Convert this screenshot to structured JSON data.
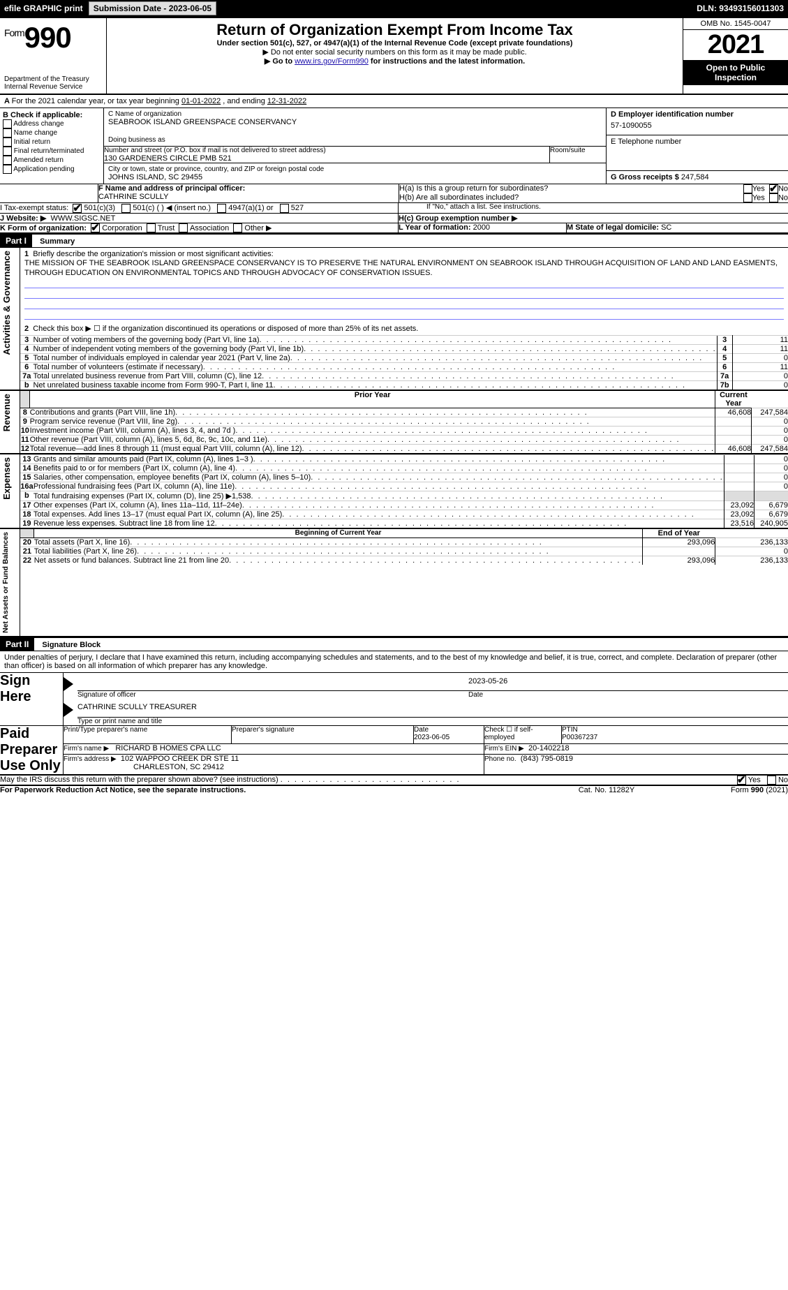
{
  "topbar": {
    "efile": "efile GRAPHIC print",
    "submission_label": "Submission Date - 2023-06-05",
    "dln": "DLN: 93493156011303"
  },
  "header": {
    "form_label": "Form",
    "form_num": "990",
    "title": "Return of Organization Exempt From Income Tax",
    "sub": "Under section 501(c), 527, or 4947(a)(1) of the Internal Revenue Code (except private foundations)",
    "note1": "▶ Do not enter social security numbers on this form as it may be made public.",
    "note2_pre": "▶ Go to ",
    "note2_link": "www.irs.gov/Form990",
    "note2_post": " for instructions and the latest information.",
    "dept": "Department of the Treasury",
    "irs": "Internal Revenue Service",
    "omb": "OMB No. 1545-0047",
    "year": "2021",
    "inspection": "Open to Public Inspection"
  },
  "periodA": {
    "text_pre": "For the 2021 calendar year, or tax year beginning ",
    "begin": "01-01-2022",
    "mid": "   , and ending ",
    "end": "12-31-2022"
  },
  "boxB": {
    "label": "B Check if applicable:",
    "items": [
      "Address change",
      "Name change",
      "Initial return",
      "Final return/terminated",
      "Amended return",
      "Application pending"
    ]
  },
  "boxC": {
    "label": "C Name of organization",
    "name": "SEABROOK ISLAND GREENSPACE CONSERVANCY",
    "dba_label": "Doing business as",
    "street_label": "Number and street (or P.O. box if mail is not delivered to street address)",
    "room_label": "Room/suite",
    "street": "130 GARDENERS CIRCLE PMB 521",
    "city_label": "City or town, state or province, country, and ZIP or foreign postal code",
    "city": "JOHNS ISLAND, SC  29455"
  },
  "boxD": {
    "label": "D Employer identification number",
    "value": "57-1090055"
  },
  "boxE": {
    "label": "E Telephone number",
    "value": ""
  },
  "boxG": {
    "label": "G Gross receipts $",
    "value": "247,584"
  },
  "boxF": {
    "label": "F  Name and address of principal officer:",
    "name": "CATHRINE SCULLY"
  },
  "boxH": {
    "a_label": "H(a)  Is this a group return for subordinates?",
    "b_label": "H(b)  Are all subordinates included?",
    "b_note": "If \"No,\" attach a list. See instructions.",
    "c_label": "H(c)  Group exemption number ▶",
    "yes": "Yes",
    "no": "No"
  },
  "boxI": {
    "label": "I    Tax-exempt status:",
    "opts": [
      "501(c)(3)",
      "501(c) (  ) ◀ (insert no.)",
      "4947(a)(1) or",
      "527"
    ]
  },
  "boxJ": {
    "label": "J   Website: ▶",
    "value": "WWW.SIGSC.NET"
  },
  "boxK": {
    "label": "K Form of organization:",
    "opts": [
      "Corporation",
      "Trust",
      "Association",
      "Other ▶"
    ]
  },
  "boxL": {
    "label": "L Year of formation:",
    "value": "2000"
  },
  "boxM": {
    "label": "M State of legal domicile:",
    "value": "SC"
  },
  "part1": {
    "header": "Part I",
    "title": "Summary",
    "side_act": "Activities & Governance",
    "side_rev": "Revenue",
    "side_exp": "Expenses",
    "side_na": "Net Assets or Fund Balances",
    "l1_label": "Briefly describe the organization's mission or most significant activities:",
    "l1_text": "THE MISSION OF THE SEABROOK ISLAND GREENSPACE CONSERVANCY IS TO PRESERVE THE NATURAL ENVIRONMENT ON SEABROOK ISLAND THROUGH ACQUISITION OF LAND AND LAND EASMENTS, THROUGH EDUCATION ON ENVIRONMENTAL TOPICS AND THROUGH ADVOCACY OF CONSERVATION ISSUES.",
    "l2": "Check this box ▶ ☐  if the organization discontinued its operations or disposed of more than 25% of its net assets.",
    "rows_gov": [
      {
        "n": "3",
        "t": "Number of voting members of the governing body (Part VI, line 1a)",
        "box": "3",
        "v": "11"
      },
      {
        "n": "4",
        "t": "Number of independent voting members of the governing body (Part VI, line 1b)",
        "box": "4",
        "v": "11"
      },
      {
        "n": "5",
        "t": "Total number of individuals employed in calendar year 2021 (Part V, line 2a)",
        "box": "5",
        "v": "0"
      },
      {
        "n": "6",
        "t": "Total number of volunteers (estimate if necessary)",
        "box": "6",
        "v": "11"
      },
      {
        "n": "7a",
        "t": "Total unrelated business revenue from Part VIII, column (C), line 12",
        "box": "7a",
        "v": "0"
      },
      {
        "n": "b",
        "t": "Net unrelated business taxable income from Form 990-T, Part I, line 11",
        "box": "7b",
        "v": "0"
      }
    ],
    "col_prior": "Prior Year",
    "col_current": "Current Year",
    "rows_rev": [
      {
        "n": "8",
        "t": "Contributions and grants (Part VIII, line 1h)",
        "p": "46,608",
        "c": "247,584"
      },
      {
        "n": "9",
        "t": "Program service revenue (Part VIII, line 2g)",
        "p": "",
        "c": "0"
      },
      {
        "n": "10",
        "t": "Investment income (Part VIII, column (A), lines 3, 4, and 7d )",
        "p": "",
        "c": "0"
      },
      {
        "n": "11",
        "t": "Other revenue (Part VIII, column (A), lines 5, 6d, 8c, 9c, 10c, and 11e)",
        "p": "",
        "c": "0"
      },
      {
        "n": "12",
        "t": "Total revenue—add lines 8 through 11 (must equal Part VIII, column (A), line 12)",
        "p": "46,608",
        "c": "247,584"
      }
    ],
    "rows_exp": [
      {
        "n": "13",
        "t": "Grants and similar amounts paid (Part IX, column (A), lines 1–3 )",
        "p": "",
        "c": "0"
      },
      {
        "n": "14",
        "t": "Benefits paid to or for members (Part IX, column (A), line 4)",
        "p": "",
        "c": "0"
      },
      {
        "n": "15",
        "t": "Salaries, other compensation, employee benefits (Part IX, column (A), lines 5–10)",
        "p": "",
        "c": "0"
      },
      {
        "n": "16a",
        "t": "Professional fundraising fees (Part IX, column (A), line 11e)",
        "p": "",
        "c": "0"
      },
      {
        "n": "b",
        "t": "Total fundraising expenses (Part IX, column (D), line 25) ▶1,538",
        "p": "SHADE",
        "c": "SHADE"
      },
      {
        "n": "17",
        "t": "Other expenses (Part IX, column (A), lines 11a–11d, 11f–24e)",
        "p": "23,092",
        "c": "6,679"
      },
      {
        "n": "18",
        "t": "Total expenses. Add lines 13–17 (must equal Part IX, column (A), line 25)",
        "p": "23,092",
        "c": "6,679"
      },
      {
        "n": "19",
        "t": "Revenue less expenses. Subtract line 18 from line 12",
        "p": "23,516",
        "c": "240,905"
      }
    ],
    "col_begin": "Beginning of Current Year",
    "col_end": "End of Year",
    "rows_na": [
      {
        "n": "20",
        "t": "Total assets (Part X, line 16)",
        "p": "293,096",
        "c": "236,133"
      },
      {
        "n": "21",
        "t": "Total liabilities (Part X, line 26)",
        "p": "",
        "c": "0"
      },
      {
        "n": "22",
        "t": "Net assets or fund balances. Subtract line 21 from line 20",
        "p": "293,096",
        "c": "236,133"
      }
    ]
  },
  "part2": {
    "header": "Part II",
    "title": "Signature Block",
    "perjury": "Under penalties of perjury, I declare that I have examined this return, including accompanying schedules and statements, and to the best of my knowledge and belief, it is true, correct, and complete. Declaration of preparer (other than officer) is based on all information of which preparer has any knowledge.",
    "sign_here": "Sign Here",
    "sig_officer": "Signature of officer",
    "sig_date": "Date",
    "sig_date_val": "2023-05-26",
    "sig_name": "CATHRINE SCULLY  TREASURER",
    "sig_name_label": "Type or print name and title",
    "paid": "Paid Preparer Use Only",
    "prep_name_label": "Print/Type preparer's name",
    "prep_sig_label": "Preparer's signature",
    "prep_date_label": "Date",
    "prep_date": "2023-06-05",
    "prep_check": "Check ☐ if self-employed",
    "ptin_label": "PTIN",
    "ptin": "P00367237",
    "firm_name_label": "Firm's name    ▶",
    "firm_name": "RICHARD B HOMES CPA LLC",
    "firm_ein_label": "Firm's EIN ▶",
    "firm_ein": "20-1402218",
    "firm_addr_label": "Firm's address ▶",
    "firm_addr1": "102 WAPPOO CREEK DR STE 11",
    "firm_addr2": "CHARLESTON, SC  29412",
    "phone_label": "Phone no.",
    "phone": "(843) 795-0819",
    "discuss": "May the IRS discuss this return with the preparer shown above? (see instructions)",
    "yes": "Yes",
    "no": "No"
  },
  "footer": {
    "pra": "For Paperwork Reduction Act Notice, see the separate instructions.",
    "cat": "Cat. No. 11282Y",
    "form": "Form 990 (2021)"
  }
}
